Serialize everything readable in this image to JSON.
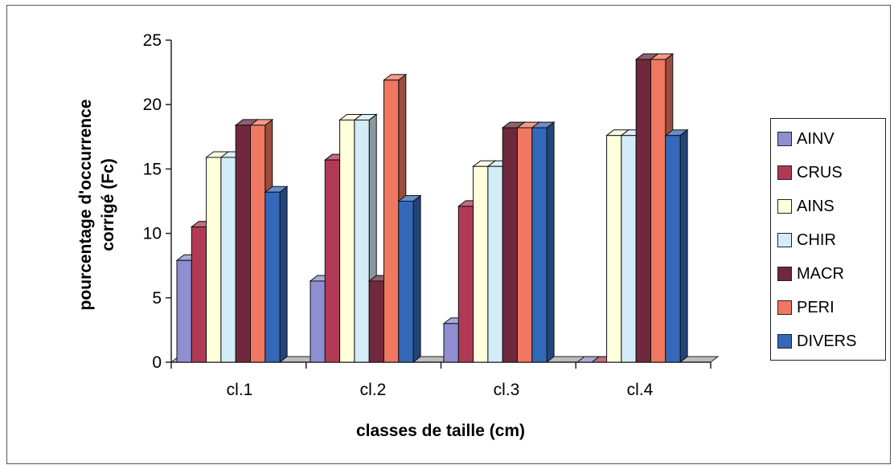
{
  "chart_data": {
    "type": "bar",
    "title": "",
    "xlabel": "classes de taille (cm)",
    "ylabel_lines": [
      "pourcentage d'occurrence",
      "corrigé (Fc)"
    ],
    "ylim": [
      0,
      25
    ],
    "yticks": [
      "0",
      "5",
      "10",
      "15",
      "20",
      "25"
    ],
    "categories": [
      "cl.1",
      "cl.2",
      "cl.3",
      "cl.4"
    ],
    "legend_position": "right",
    "series": [
      {
        "name": "AINV",
        "color": "#8e8ed0",
        "values": [
          7.9,
          6.3,
          3.0,
          0
        ]
      },
      {
        "name": "CRUS",
        "color": "#b03a55",
        "values": [
          10.5,
          15.7,
          12.1,
          0
        ]
      },
      {
        "name": "AINS",
        "color": "#ffffdc",
        "values": [
          15.9,
          18.8,
          15.2,
          17.6
        ]
      },
      {
        "name": "CHIR",
        "color": "#d2ecf8",
        "values": [
          15.9,
          18.8,
          15.2,
          17.6
        ]
      },
      {
        "name": "MACR",
        "color": "#70283c",
        "values": [
          18.4,
          6.3,
          18.2,
          23.5
        ]
      },
      {
        "name": "PERI",
        "color": "#f07860",
        "values": [
          18.4,
          21.9,
          18.2,
          23.5
        ]
      },
      {
        "name": "DIVERS",
        "color": "#3468b8",
        "values": [
          13.2,
          12.5,
          18.2,
          17.6
        ]
      }
    ]
  }
}
